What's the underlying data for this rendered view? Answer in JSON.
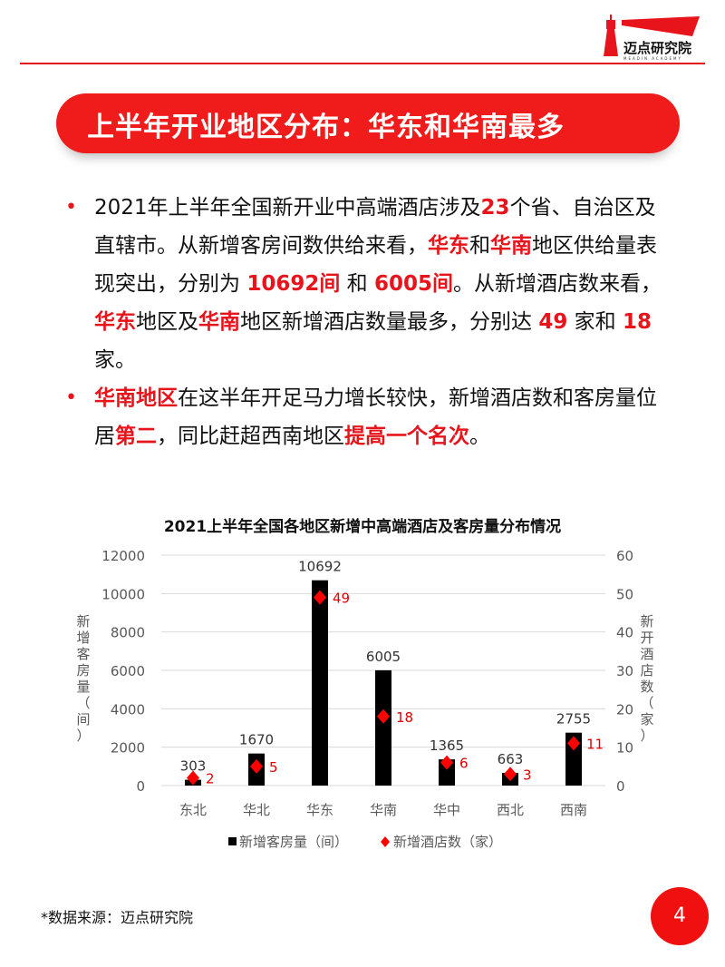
{
  "logo": {
    "name": "迈点研究院",
    "sub": "MEADIN ACADEMY"
  },
  "banner": {
    "title": "上半年开业地区分布：华东和华南最多"
  },
  "bullets": [
    [
      {
        "t": "2021年上半年全国新开业中高端酒店涉及"
      },
      {
        "t": "23",
        "h": true
      },
      {
        "t": "个省、自治区及直辖市。从新增客房间数供给来看，"
      },
      {
        "t": "华东",
        "h": true
      },
      {
        "t": "和"
      },
      {
        "t": "华南",
        "h": true
      },
      {
        "t": "地区供给量表现突出，分别为 "
      },
      {
        "t": "10692间",
        "h": true
      },
      {
        "t": " 和 "
      },
      {
        "t": "6005间",
        "h": true
      },
      {
        "t": "。从新增酒店数来看，"
      },
      {
        "t": "华东",
        "h": true
      },
      {
        "t": "地区及"
      },
      {
        "t": "华南",
        "h": true
      },
      {
        "t": "地区新增酒店数量最多，分别达 "
      },
      {
        "t": "49",
        "h": true
      },
      {
        "t": " 家和 "
      },
      {
        "t": "18",
        "h": true
      },
      {
        "t": " 家。"
      }
    ],
    [
      {
        "t": "华南地区",
        "h": true
      },
      {
        "t": "在这半年开足马力增长较快，新增酒店数和客房量位居"
      },
      {
        "t": "第二",
        "h": true
      },
      {
        "t": "，同比赶超西南地区"
      },
      {
        "t": "提高一个名次",
        "h": true
      },
      {
        "t": "。"
      }
    ]
  ],
  "chart_data": {
    "type": "bar+scatter",
    "title": "2021上半年全国各地区新增中高端酒店及客房量分布情况",
    "categories": [
      "东北",
      "华北",
      "华东",
      "华南",
      "华中",
      "西北",
      "西南"
    ],
    "series": [
      {
        "name": "新增客房量（间）",
        "type": "bar",
        "axis": "left",
        "values": [
          303,
          1670,
          10692,
          6005,
          1365,
          663,
          2755
        ],
        "color": "#000000"
      },
      {
        "name": "新增酒店数（家）",
        "type": "scatter",
        "axis": "right",
        "values": [
          2,
          5,
          49,
          18,
          6,
          3,
          11
        ],
        "color": "#ff0000"
      }
    ],
    "ylabel": "新增客房量（间）",
    "y2label": "新开酒店数（家）",
    "ylim": [
      0,
      12000
    ],
    "y2lim": [
      0,
      60
    ],
    "yticks": [
      "0",
      "2000",
      "4000",
      "6000",
      "8000",
      "10000",
      "12000"
    ],
    "y2ticks": [
      "0",
      "10",
      "20",
      "30",
      "40",
      "50",
      "60"
    ],
    "grid": true,
    "legend": "bottom"
  },
  "source": "*数据来源：迈点研究院",
  "page": "4"
}
